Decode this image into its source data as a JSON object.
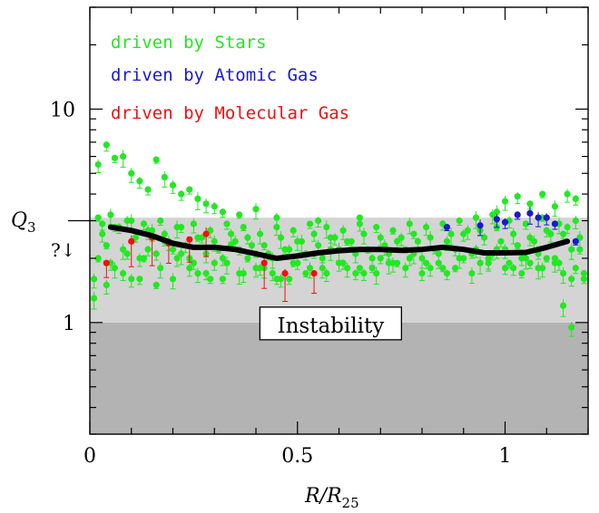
{
  "chart_data": {
    "type": "scatter",
    "title": "",
    "xlabel": "R/R25",
    "xlabel_parts": {
      "base": "R/R",
      "sub": "25"
    },
    "ylabel": "Q3",
    "ylabel_parts": {
      "base": "Q",
      "sub": "3"
    },
    "y_scale": "log",
    "xlim": [
      0,
      1.2
    ],
    "ylim": [
      0.3,
      30
    ],
    "x_ticks": [
      0,
      0.5,
      1
    ],
    "x_tick_labels": [
      "0",
      "0.5",
      "1"
    ],
    "y_ticks": [
      1,
      10
    ],
    "y_tick_labels": [
      "1",
      "10"
    ],
    "y_marker_label": "?↓",
    "y_marker_value": 3,
    "bands": [
      {
        "name": "instability",
        "label": "Instability",
        "y_from": 0.3,
        "y_to": 1,
        "color": "#b3b3b3"
      },
      {
        "name": "marginal",
        "y_from": 1,
        "y_to": 3.1,
        "color": "#d4d4d4"
      }
    ],
    "legend": {
      "placement": "top-left",
      "entries": [
        {
          "label": "driven by Stars",
          "color": "#22e822"
        },
        {
          "label": "driven by Atomic Gas",
          "color": "#1a1acc"
        },
        {
          "label": "driven by Molecular Gas",
          "color": "#ee1111"
        }
      ]
    },
    "series": [
      {
        "name": "driven by Stars",
        "color": "#22e822",
        "x": [
          0.02,
          0.06,
          0.1,
          0.14,
          0.18,
          0.22,
          0.26,
          0.3,
          0.34,
          0.38,
          0.42,
          0.46,
          0.5,
          0.54,
          0.58,
          0.62,
          0.66,
          0.7,
          0.74,
          0.78,
          0.82,
          0.86,
          0.9,
          0.94,
          0.98,
          1.02,
          1.06,
          1.1,
          1.14,
          0.03,
          0.07,
          0.11,
          0.15,
          0.19,
          0.23,
          0.27,
          0.31,
          0.35,
          0.39,
          0.43,
          0.47,
          0.51,
          0.55,
          0.59,
          0.63,
          0.67,
          0.71,
          0.75,
          0.79,
          0.83,
          0.87,
          0.91,
          0.95,
          0.99,
          1.03,
          1.07,
          1.11,
          1.15,
          1.18,
          0.01,
          0.04,
          0.08,
          0.12,
          0.16,
          0.2,
          0.24,
          0.28,
          0.32,
          0.36,
          0.4,
          0.44,
          0.48,
          0.52,
          0.56,
          0.6,
          0.64,
          0.68,
          0.72,
          0.76,
          0.8,
          0.84,
          0.88,
          0.92,
          0.96,
          1.0,
          1.04,
          1.08,
          1.12,
          1.16,
          1.19,
          0.02,
          0.05,
          0.09,
          0.13,
          0.17,
          0.21,
          0.25,
          0.29,
          0.33,
          0.37,
          0.41,
          0.45,
          0.49,
          0.53,
          0.57,
          0.61,
          0.65,
          0.69,
          0.73,
          0.77,
          0.81,
          0.85,
          0.89,
          0.93,
          0.97,
          1.01,
          1.05,
          1.09,
          1.13,
          1.17,
          0.03,
          0.06,
          0.1,
          0.14,
          0.18,
          0.22,
          0.26,
          0.3,
          0.34,
          0.38,
          0.42,
          0.46,
          0.5,
          0.54,
          0.58,
          0.62,
          0.66,
          0.7,
          0.74,
          0.78,
          0.82,
          0.86,
          0.9,
          0.94,
          0.98,
          1.02,
          1.06,
          1.1,
          1.14,
          1.18,
          0.01,
          0.05,
          0.09,
          0.13,
          0.17,
          0.21,
          0.25,
          0.29,
          0.33,
          0.37,
          0.41,
          0.45,
          0.49,
          0.53,
          0.57,
          0.61,
          0.65,
          0.69,
          0.73,
          0.77,
          0.81,
          0.85,
          0.89,
          0.93,
          0.97,
          1.01,
          1.05,
          1.09,
          1.13,
          1.17,
          0.04,
          0.08,
          0.12,
          0.16,
          0.2,
          0.24,
          0.28,
          0.32,
          0.36,
          0.4,
          0.44,
          0.48,
          0.52,
          0.56,
          0.6,
          0.64,
          0.68,
          0.72,
          0.76,
          0.8,
          0.84,
          0.88,
          0.92,
          0.96,
          1.0,
          1.04,
          1.08,
          1.12,
          1.16,
          0.02,
          0.04,
          0.06,
          0.08,
          0.1,
          0.12,
          0.14,
          0.16,
          0.18,
          0.2,
          0.22,
          0.24,
          0.26,
          0.28,
          0.3,
          0.32,
          0.36,
          0.4,
          0.45,
          0.55,
          0.65,
          0.98,
          1.0,
          1.03,
          1.06,
          1.09,
          1.12,
          1.15,
          1.17,
          1.19,
          1.14,
          1.16
        ],
        "y": [
          2.0,
          1.8,
          1.6,
          2.2,
          2.4,
          2.1,
          1.7,
          1.9,
          2.3,
          2.0,
          1.8,
          1.6,
          1.9,
          2.1,
          2.2,
          1.8,
          1.7,
          2.0,
          1.9,
          2.1,
          1.8,
          1.7,
          2.0,
          1.9,
          2.2,
          1.8,
          1.9,
          2.0,
          1.7,
          2.6,
          2.8,
          2.5,
          2.7,
          2.4,
          2.3,
          2.5,
          2.2,
          2.4,
          2.3,
          2.1,
          2.2,
          2.4,
          2.3,
          2.5,
          2.4,
          2.2,
          2.3,
          2.5,
          2.4,
          2.2,
          2.6,
          2.7,
          2.5,
          2.4,
          2.3,
          2.4,
          2.6,
          2.8,
          2.2,
          1.3,
          1.5,
          1.7,
          1.6,
          1.5,
          1.6,
          1.8,
          1.7,
          1.6,
          1.7,
          1.8,
          1.7,
          1.6,
          1.7,
          1.8,
          1.9,
          1.7,
          1.8,
          1.9,
          1.8,
          1.7,
          1.9,
          1.8,
          1.7,
          1.9,
          1.8,
          1.7,
          1.8,
          1.9,
          1.6,
          1.7,
          3.1,
          3.2,
          3.0,
          2.9,
          3.0,
          2.8,
          2.9,
          2.7,
          2.9,
          2.8,
          2.6,
          2.8,
          2.7,
          2.9,
          2.8,
          2.7,
          2.9,
          2.8,
          2.7,
          2.9,
          2.8,
          2.9,
          3.0,
          3.1,
          3.2,
          3.0,
          2.9,
          3.1,
          2.9,
          3.0,
          2.9,
          2.8,
          3.0,
          2.7,
          2.6,
          2.8,
          2.5,
          2.4,
          2.6,
          2.5,
          2.3,
          2.5,
          2.4,
          2.6,
          2.5,
          2.4,
          2.6,
          2.5,
          2.4,
          2.6,
          2.5,
          2.4,
          2.6,
          2.7,
          2.8,
          2.6,
          2.5,
          2.7,
          2.6,
          2.5,
          1.6,
          1.9,
          2.1,
          2.0,
          1.8,
          2.0,
          1.9,
          1.6,
          1.9,
          1.7,
          1.8,
          1.6,
          1.9,
          1.8,
          1.7,
          1.9,
          1.8,
          1.7,
          1.9,
          2.0,
          1.9,
          1.8,
          2.0,
          2.2,
          2.1,
          1.9,
          2.0,
          1.8,
          1.9,
          1.8,
          2.3,
          2.2,
          2.0,
          2.1,
          2.2,
          2.0,
          2.1,
          2.0,
          2.2,
          2.1,
          2.0,
          2.2,
          2.1,
          2.0,
          2.2,
          2.1,
          2.0,
          2.1,
          2.2,
          2.0,
          2.1,
          2.2,
          2.1,
          2.0,
          2.2,
          2.0,
          2.1,
          2.0,
          2.2,
          5.5,
          6.8,
          5.9,
          6.0,
          5.0,
          4.6,
          4.2,
          5.8,
          4.8,
          4.4,
          4.0,
          4.2,
          3.8,
          3.6,
          3.5,
          3.3,
          3.2,
          3.4,
          3.1,
          3.0,
          3.1,
          3.3,
          3.7,
          3.9,
          3.6,
          4.0,
          3.5,
          4.0,
          3.8,
          1.6,
          1.2,
          0.95
        ]
      },
      {
        "name": "driven by Atomic Gas",
        "color": "#1a1acc",
        "x": [
          0.86,
          0.94,
          0.98,
          1.0,
          1.03,
          1.06,
          1.08,
          1.1,
          1.12,
          1.17
        ],
        "y": [
          2.8,
          2.85,
          3.05,
          2.95,
          3.2,
          3.25,
          3.1,
          3.1,
          2.9,
          2.4
        ]
      },
      {
        "name": "driven by Molecular Gas",
        "color": "#ee1111",
        "x": [
          0.04,
          0.1,
          0.15,
          0.19,
          0.24,
          0.28,
          0.42,
          0.47,
          0.54
        ],
        "y": [
          1.9,
          2.4,
          2.5,
          2.35,
          2.45,
          2.6,
          1.9,
          1.7,
          1.7
        ]
      },
      {
        "name": "",
        "style": "thick-line",
        "color": "#000000",
        "x": [
          0.05,
          0.1,
          0.15,
          0.2,
          0.25,
          0.3,
          0.35,
          0.4,
          0.45,
          0.5,
          0.55,
          0.6,
          0.65,
          0.7,
          0.75,
          0.8,
          0.85,
          0.9,
          0.95,
          1.0,
          1.05,
          1.1,
          1.15
        ],
        "y": [
          2.8,
          2.7,
          2.55,
          2.35,
          2.25,
          2.25,
          2.2,
          2.1,
          2.0,
          2.05,
          2.12,
          2.17,
          2.2,
          2.2,
          2.18,
          2.2,
          2.25,
          2.2,
          2.12,
          2.12,
          2.13,
          2.25,
          2.4
        ]
      }
    ]
  }
}
